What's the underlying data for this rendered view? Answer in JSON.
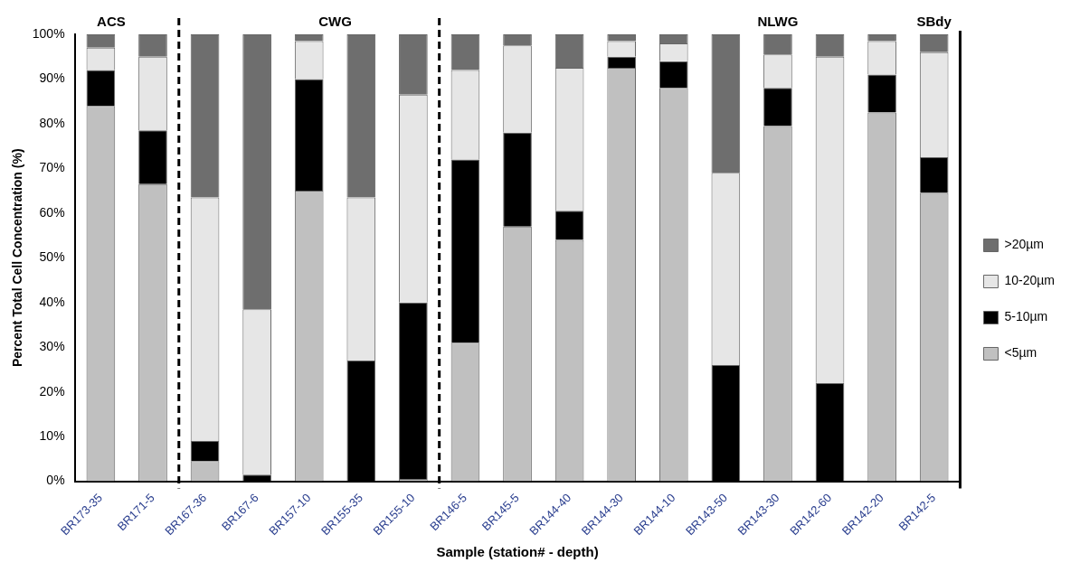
{
  "chart_data": {
    "type": "bar",
    "stacked": true,
    "xlabel": "Sample (station# - depth)",
    "ylabel": "Percent Total Cell Concentration (%)",
    "categories": [
      "BR173-35",
      "BR171-5",
      "BR167-36",
      "BR167-6",
      "BR157-10",
      "BR155-35",
      "BR155-10",
      "BR146-5",
      "BR145-5",
      "BR144-40",
      "BR144-30",
      "BR144-10",
      "BR143-50",
      "BR143-30",
      "BR142-60",
      "BR142-20",
      "BR142-5"
    ],
    "series": [
      {
        "name": "<5µm",
        "color": "#c0c0c0",
        "values": [
          84,
          66.5,
          4.5,
          0,
          65,
          0,
          0.5,
          31,
          57,
          54,
          92.5,
          88,
          0,
          79.5,
          0,
          82.5,
          64.5
        ]
      },
      {
        "name": "5-10µm",
        "color": "#000000",
        "values": [
          8,
          12,
          4.5,
          1.5,
          25,
          27,
          39.5,
          41,
          21,
          6.5,
          2.5,
          6,
          26,
          8.5,
          22,
          8.5,
          8
        ]
      },
      {
        "name": "10-20µm",
        "color": "#e6e6e6",
        "values": [
          5,
          16.5,
          54.5,
          37,
          8.5,
          36.5,
          46.5,
          20,
          19.5,
          32,
          3.5,
          4,
          43,
          7.5,
          73,
          7.5,
          23.5
        ]
      },
      {
        "name": ">20µm",
        "color": "#6e6e6e",
        "values": [
          3,
          5,
          36.5,
          61.5,
          1.5,
          36.5,
          13.5,
          8,
          2.5,
          7.5,
          1.5,
          2,
          31,
          4.5,
          5,
          1.5,
          4
        ]
      }
    ],
    "ylim": [
      0,
      100
    ],
    "yticks": [
      {
        "value": 0,
        "label": "0%"
      },
      {
        "value": 10,
        "label": "10%"
      },
      {
        "value": 20,
        "label": "20%"
      },
      {
        "value": 30,
        "label": "30%"
      },
      {
        "value": 40,
        "label": "40%"
      },
      {
        "value": 50,
        "label": "50%"
      },
      {
        "value": 60,
        "label": "60%"
      },
      {
        "value": 70,
        "label": "70%"
      },
      {
        "value": 80,
        "label": "80%"
      },
      {
        "value": 90,
        "label": "90%"
      },
      {
        "value": 100,
        "label": "100%"
      }
    ],
    "annotations": [
      "ACS",
      "CWG",
      "NLWG",
      "SBdy"
    ],
    "grid": false,
    "legend": "right"
  }
}
